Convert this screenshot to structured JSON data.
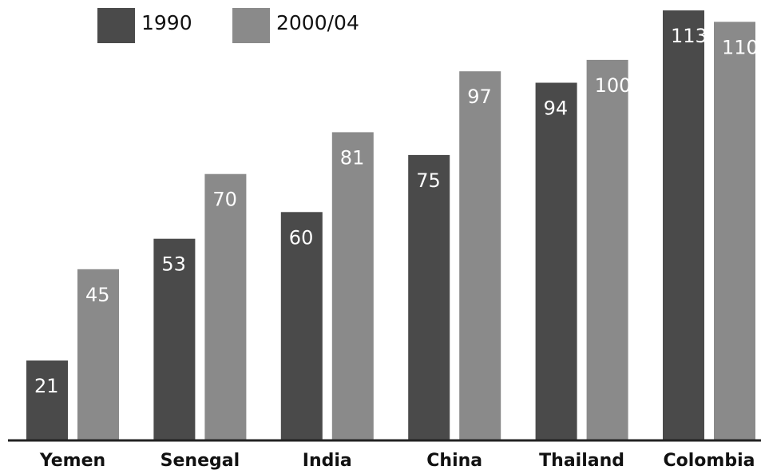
{
  "legend": {
    "items": [
      {
        "label": "1990",
        "color": "#4a4a4a"
      },
      {
        "label": "2000/04",
        "color": "#8a8a8a"
      }
    ]
  },
  "chart_data": {
    "type": "bar",
    "categories": [
      "Yemen",
      "Senegal",
      "India",
      "China",
      "Thailand",
      "Colombia"
    ],
    "series": [
      {
        "name": "1990",
        "values": [
          21,
          53,
          60,
          75,
          94,
          113
        ],
        "color": "#4a4a4a"
      },
      {
        "name": "2000/04",
        "values": [
          45,
          70,
          81,
          97,
          100,
          110
        ],
        "color": "#8a8a8a"
      }
    ],
    "ylim": [
      0,
      113
    ],
    "grid": false,
    "legend_position": "top-left",
    "data_labels": true,
    "data_label_color": "#ffffff",
    "axis_color": "#222222",
    "category_label_color": "#111111"
  }
}
